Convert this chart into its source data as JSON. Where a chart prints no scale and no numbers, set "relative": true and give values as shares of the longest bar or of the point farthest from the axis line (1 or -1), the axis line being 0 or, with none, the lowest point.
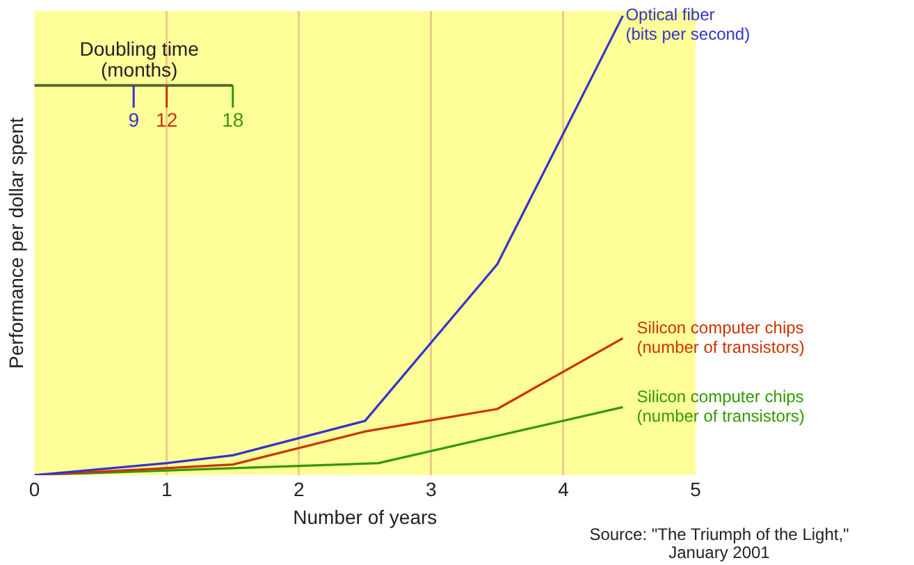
{
  "chart_data": {
    "type": "line",
    "relative": true,
    "xlabel": "Number of years",
    "ylabel": "Performance per dollar spent",
    "xlim": [
      0,
      5
    ],
    "xticks": [
      0,
      1,
      2,
      3,
      4,
      5
    ],
    "grid": "x",
    "legend": false,
    "marker": "none",
    "line_style": "solid",
    "series": [
      {
        "name": "Optical fiber (bits per second)",
        "color": "#3333cc",
        "x": [
          0,
          1,
          1.5,
          2.5,
          3.5,
          4.45
        ],
        "values": [
          0,
          0.026,
          0.043,
          0.118,
          0.459,
          1
        ]
      },
      {
        "name": "Silicon computer chips (number of transistors)",
        "color": "#cc3300",
        "x": [
          0,
          1.5,
          2.5,
          3.5,
          4.45
        ],
        "values": [
          0,
          0.023,
          0.095,
          0.144,
          0.298
        ]
      },
      {
        "name": "Silicon computer chips (number of transistors)",
        "color": "#339900",
        "x": [
          0,
          2.6,
          4.45
        ],
        "values": [
          0,
          0.026,
          0.148
        ]
      }
    ],
    "annotations": [
      "Doubling time (months)",
      "9",
      "12",
      "18",
      "Source: \"The Triumph of the Light,\" January 2001"
    ]
  }
}
